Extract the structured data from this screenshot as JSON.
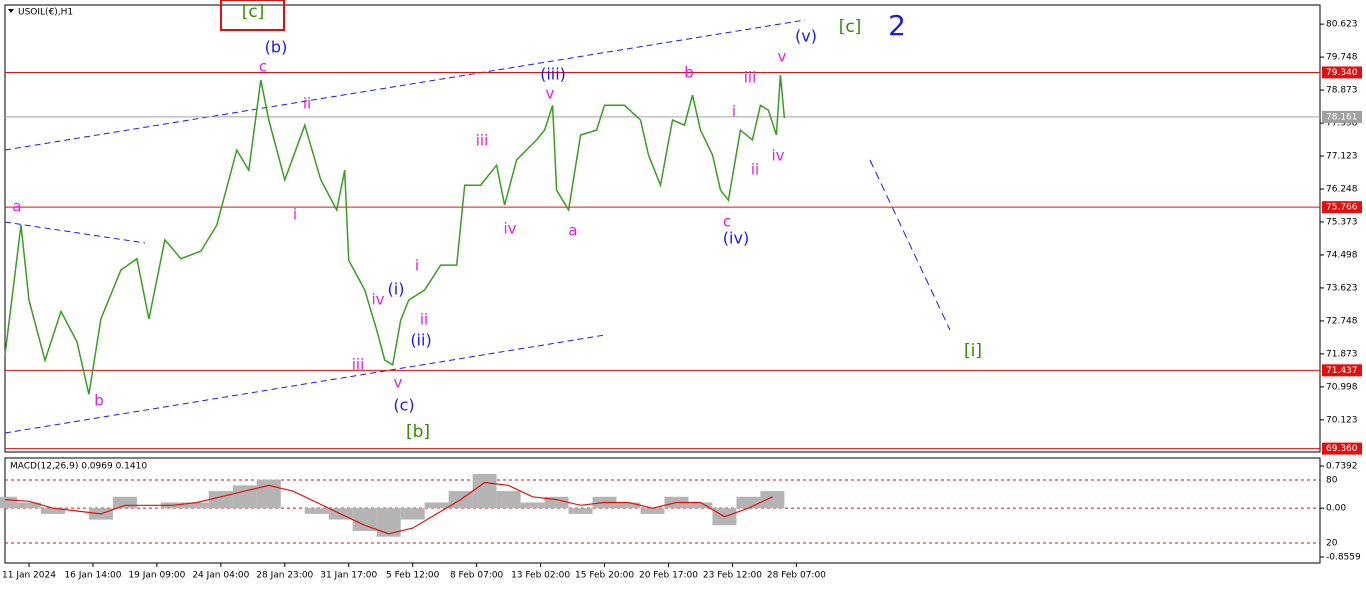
{
  "chart_data": [
    {
      "type": "line",
      "title": "USOIL(€),H1",
      "color": "#3a9d23",
      "x": [
        0,
        4,
        6,
        10,
        14,
        18,
        21,
        24,
        29,
        33,
        36,
        40,
        44,
        49,
        53,
        58,
        61,
        64,
        66,
        70,
        75,
        79,
        83,
        85,
        86,
        90,
        93,
        95,
        97,
        99,
        101,
        105,
        109,
        113,
        115,
        119,
        123,
        125,
        128,
        133,
        135,
        137,
        138,
        141,
        144,
        148,
        150,
        155,
        159,
        161,
        164,
        167,
        170,
        172,
        174,
        177,
        179,
        181,
        184,
        187,
        189,
        191,
        193,
        194,
        195
      ],
      "values": [
        71.85,
        75.29,
        73.3,
        71.7,
        73.0,
        72.2,
        70.8,
        72.8,
        74.1,
        74.4,
        72.8,
        74.9,
        74.4,
        74.6,
        75.29,
        77.28,
        76.75,
        79.14,
        78.08,
        76.49,
        77.94,
        76.49,
        75.69,
        76.75,
        74.36,
        73.57,
        72.51,
        71.71,
        71.58,
        72.77,
        73.3,
        73.57,
        74.23,
        74.23,
        76.35,
        76.35,
        76.88,
        75.82,
        77.02,
        77.55,
        77.81,
        78.47,
        76.22,
        75.69,
        77.68,
        77.81,
        78.47,
        78.47,
        78.08,
        77.15,
        76.35,
        78.08,
        77.94,
        78.74,
        77.81,
        77.15,
        76.22,
        75.95,
        77.81,
        77.55,
        78.47,
        78.34,
        77.68,
        79.27,
        78.13
      ],
      "xlim": [
        0,
        329
      ],
      "ylim": [
        69.27,
        81.13
      ],
      "yticks": [
        80.623,
        79.748,
        78.873,
        77.998,
        77.123,
        76.248,
        75.373,
        74.498,
        73.623,
        72.748,
        71.873,
        70.998,
        70.123
      ],
      "xticks": [
        {
          "value": 6,
          "label": "11 Jan 2024"
        },
        {
          "value": 22,
          "label": "16 Jan 14:00"
        },
        {
          "value": 38,
          "label": "19 Jan 09:00"
        },
        {
          "value": 54,
          "label": "24 Jan 04:00"
        },
        {
          "value": 70,
          "label": "28 Jan 23:00"
        },
        {
          "value": 86,
          "label": "31 Jan 17:00"
        },
        {
          "value": 102,
          "label": "5 Feb 12:00"
        },
        {
          "value": 118,
          "label": "8 Feb 07:00"
        },
        {
          "value": 134,
          "label": "13 Feb 02:00"
        },
        {
          "value": 150,
          "label": "15 Feb 20:00"
        },
        {
          "value": 166,
          "label": "20 Feb 17:00"
        },
        {
          "value": 182,
          "label": "23 Feb 12:00"
        },
        {
          "value": 198,
          "label": "28 Feb 07:00"
        }
      ],
      "price_levels": [
        {
          "value": 79.34,
          "label": "79.340",
          "color": "#e01010"
        },
        {
          "value": 78.161,
          "label": "78.161",
          "color": "#a0a0a0"
        },
        {
          "value": 75.766,
          "label": "75.766",
          "color": "#e01010"
        },
        {
          "value": 71.437,
          "label": "71.437",
          "color": "#e01010"
        },
        {
          "value": 69.36,
          "label": "69.360",
          "color": "#e01010"
        }
      ],
      "annotations": [
        "[c]",
        "2",
        "[c]",
        "(v)",
        "(b)",
        "c",
        "ii",
        "(iii)",
        "v",
        "b",
        "iii",
        "v",
        "i",
        "iv",
        "ii",
        "iii",
        "i",
        "iv",
        "a",
        "c",
        "(iv)",
        "a",
        "i",
        "iv",
        "(i)",
        "ii",
        "(ii)",
        "iii",
        "v",
        "(c)",
        "[b]",
        "b",
        "[i]"
      ]
    },
    {
      "type": "bar",
      "title": "MACD(12,26,9) 0.0969 0.1410",
      "color": "#b4b4b4",
      "signal_color": "#e01010",
      "x": [
        0,
        6,
        12,
        18,
        24,
        30,
        36,
        42,
        48,
        54,
        60,
        66,
        72,
        78,
        84,
        90,
        96,
        102,
        108,
        114,
        120,
        126,
        132,
        138,
        144,
        150,
        156,
        162,
        168,
        174,
        180,
        186,
        192
      ],
      "values": [
        0.2,
        0.1,
        -0.1,
        0.0,
        -0.2,
        0.2,
        0.0,
        0.1,
        0.1,
        0.3,
        0.4,
        0.5,
        0.0,
        -0.1,
        -0.2,
        -0.4,
        -0.5,
        -0.2,
        0.1,
        0.3,
        0.6,
        0.3,
        0.1,
        0.2,
        -0.1,
        0.2,
        0.1,
        -0.1,
        0.2,
        0.1,
        -0.3,
        0.2,
        0.3
      ],
      "signal_values": [
        0.15,
        0.12,
        0.0,
        -0.05,
        -0.1,
        0.05,
        0.05,
        0.05,
        0.1,
        0.2,
        0.3,
        0.4,
        0.3,
        0.1,
        -0.1,
        -0.3,
        -0.45,
        -0.35,
        -0.1,
        0.15,
        0.45,
        0.4,
        0.2,
        0.15,
        0.05,
        0.1,
        0.1,
        0.0,
        0.1,
        0.1,
        -0.15,
        0.0,
        0.2
      ],
      "ylim": [
        -0.8559,
        0.7392
      ],
      "yticks": [
        0.7392,
        {
          "value": 0,
          "label": "0.00"
        },
        -0.8559
      ],
      "y2lim": [
        0,
        100
      ],
      "y2ticks": [
        80,
        20
      ]
    }
  ]
}
